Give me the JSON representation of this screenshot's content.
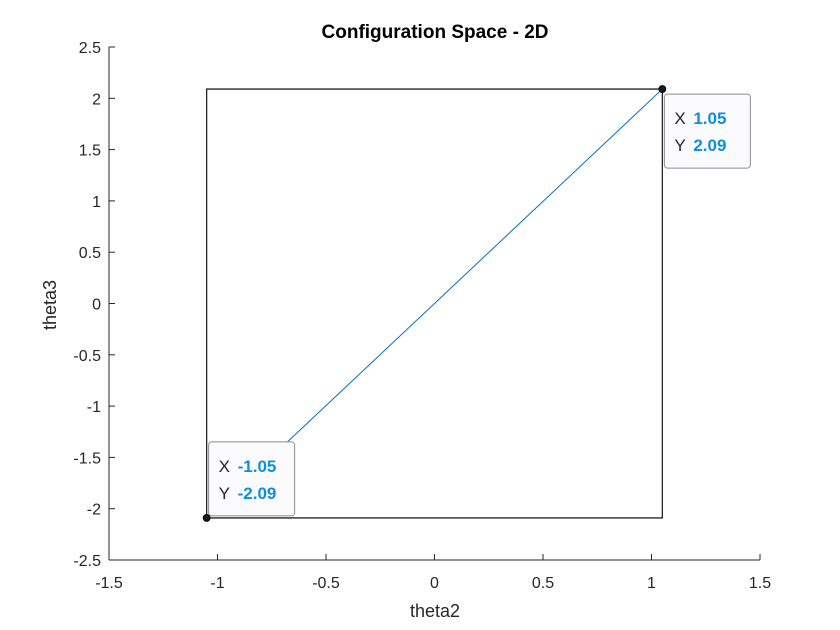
{
  "chart_data": {
    "type": "line",
    "title": "Configuration Space - 2D",
    "xlabel": "theta2",
    "ylabel": "theta3",
    "xlim": [
      -1.5,
      1.5
    ],
    "ylim": [
      -2.5,
      2.5
    ],
    "xticks": [
      "-1.5",
      "-1",
      "-0.5",
      "0",
      "0.5",
      "1",
      "1.5"
    ],
    "yticks": [
      "2.5",
      "2",
      "1.5",
      "1",
      "0.5",
      "0",
      "-0.5",
      "-1",
      "-1.5",
      "-2",
      "-2.5"
    ],
    "xtick_values": [
      -1.5,
      -1,
      -0.5,
      0,
      0.5,
      1,
      1.5
    ],
    "ytick_values": [
      2.5,
      2,
      1.5,
      1,
      0.5,
      0,
      -0.5,
      -1,
      -1.5,
      -2,
      -2.5
    ],
    "grid": false,
    "boundary": {
      "x": [
        -1.05,
        1.05,
        1.05,
        -1.05,
        -1.05
      ],
      "y": [
        -2.09,
        -2.09,
        2.09,
        2.09,
        -2.09
      ],
      "color": "#262626"
    },
    "series": [
      {
        "x": [
          -1.05,
          1.05
        ],
        "y": [
          -2.09,
          2.09
        ],
        "color": "#0072bd"
      }
    ],
    "datatips": [
      {
        "x": -1.05,
        "y": -2.09,
        "x_key": "X",
        "y_key": "Y",
        "x_text": "-1.05",
        "y_text": "-2.09"
      },
      {
        "x": 1.05,
        "y": 2.09,
        "x_key": "X",
        "y_key": "Y",
        "x_text": "1.05",
        "y_text": "2.09"
      }
    ],
    "colors": {
      "axis": "#262626",
      "tip_value": "#0d8ee0",
      "marker": "#1a1a1a"
    }
  }
}
